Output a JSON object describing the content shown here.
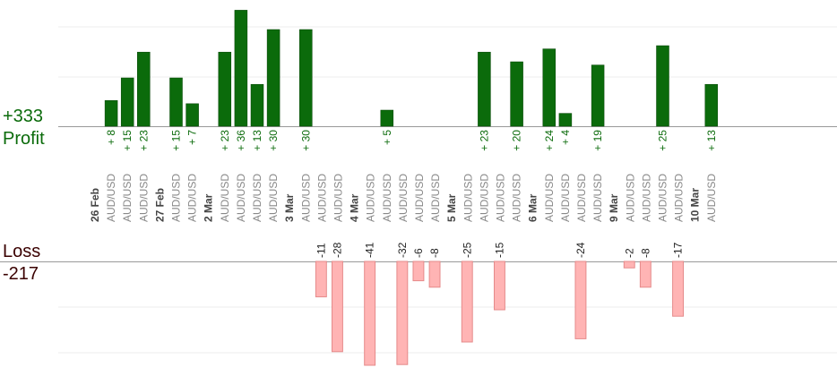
{
  "summary": {
    "profit_value": "+333",
    "profit_label": "Profit",
    "loss_label": "Loss",
    "loss_value": "-217"
  },
  "colors": {
    "profit": "#0b6b0b",
    "profit_dark": "#064406",
    "loss": "#ffb4b4",
    "loss_border": "#e58a8a",
    "profit_text": "#0b6b0b",
    "loss_text": "#222222",
    "axis": "#999999",
    "grid": "#eeeeee"
  },
  "chart_data": {
    "type": "bar",
    "pair": "AUD/USD",
    "days": [
      {
        "date": "26 Feb",
        "trades": [
          8,
          15,
          23
        ]
      },
      {
        "date": "27 Feb",
        "trades": [
          15,
          7
        ]
      },
      {
        "date": "2 Mar",
        "trades": [
          23,
          36,
          13,
          30
        ]
      },
      {
        "date": "3 Mar",
        "trades": [
          30,
          -11,
          -28
        ]
      },
      {
        "date": "4 Mar",
        "trades": [
          -41,
          5,
          -32,
          -6,
          -8
        ]
      },
      {
        "date": "5 Mar",
        "trades": [
          -25,
          23,
          -15,
          20
        ]
      },
      {
        "date": "6 Mar",
        "trades": [
          24,
          4,
          -24,
          19
        ]
      },
      {
        "date": "9 Mar",
        "trades": [
          -2,
          -8,
          25,
          -17
        ]
      },
      {
        "date": "10 Mar",
        "trades": [
          13
        ]
      }
    ]
  }
}
